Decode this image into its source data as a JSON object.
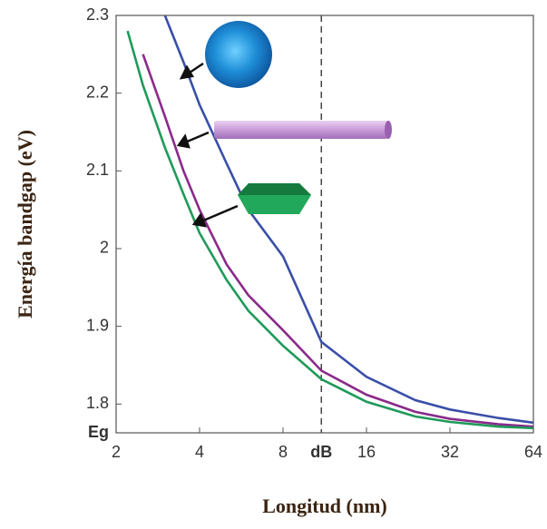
{
  "chart_data": {
    "type": "line",
    "x_label": "Longitud (nm)",
    "y_label": "Energía bandgap (eV)",
    "x": [
      2.2,
      2.5,
      3,
      3.5,
      4,
      5,
      6,
      8,
      11,
      16,
      24,
      32,
      48,
      64
    ],
    "series": [
      {
        "color": "#3a4fa8",
        "values": [
          null,
          null,
          2.3,
          2.24,
          2.185,
          2.11,
          2.05,
          1.99,
          1.88,
          1.835,
          1.805,
          1.793,
          1.782,
          1.776
        ]
      },
      {
        "color": "#8a2a8a",
        "values": [
          null,
          2.25,
          2.17,
          2.1,
          2.05,
          1.98,
          1.94,
          1.895,
          1.843,
          1.812,
          1.79,
          1.781,
          1.774,
          1.771
        ]
      },
      {
        "color": "#1f9a5a",
        "values": [
          2.28,
          2.21,
          2.13,
          2.07,
          2.02,
          1.96,
          1.92,
          1.875,
          1.832,
          1.803,
          1.784,
          1.777,
          1.771,
          1.769
        ]
      }
    ],
    "xlim": [
      2,
      64
    ],
    "x_log_base": 2,
    "xticks": [
      2,
      4,
      8,
      {
        "value": 11,
        "label": "dB"
      },
      16,
      32,
      64
    ],
    "ylim": [
      1.763,
      2.3
    ],
    "yticks": [
      {
        "value": 1.763,
        "label": "Eg"
      },
      1.8,
      1.9,
      2.0,
      2.1,
      2.2,
      2.3
    ],
    "grid": false
  }
}
